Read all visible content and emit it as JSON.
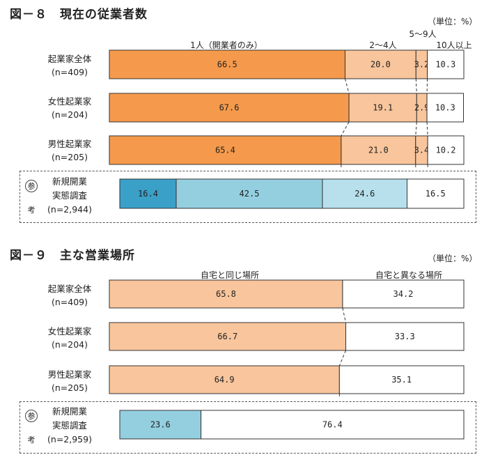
{
  "chart_data": [
    {
      "type": "bar",
      "title": "図－８　現在の従業者数",
      "unit": "（単位：%）",
      "categories": [
        "1人（開業者のみ）",
        "2～4人",
        "5～9人",
        "10人以上"
      ],
      "rows": [
        {
          "label1": "起業家全体",
          "label2": "(n=409)",
          "values": [
            66.5,
            20.0,
            3.2,
            10.3
          ]
        },
        {
          "label1": "女性起業家",
          "label2": "(n=204)",
          "values": [
            67.6,
            19.1,
            2.9,
            10.3
          ]
        },
        {
          "label1": "男性起業家",
          "label2": "(n=205)",
          "values": [
            65.4,
            21.0,
            3.4,
            10.2
          ]
        }
      ],
      "reference": {
        "label1": "新規開業",
        "label2": "実態調査",
        "label3": "(n=2,944)",
        "values": [
          16.4,
          42.5,
          24.6,
          16.5
        ]
      },
      "colors": [
        "#f59a4c",
        "#f8c59c",
        "#f8c59c",
        "#ffffff"
      ],
      "ref_colors": [
        "#3aa0c8",
        "#94cfe0",
        "#b7e0ec",
        "#ffffff"
      ]
    },
    {
      "type": "bar",
      "title": "図－９　主な営業場所",
      "unit": "（単位：%）",
      "categories": [
        "自宅と同じ場所",
        "自宅と異なる場所"
      ],
      "rows": [
        {
          "label1": "起業家全体",
          "label2": "(n=409)",
          "values": [
            65.8,
            34.2
          ]
        },
        {
          "label1": "女性起業家",
          "label2": "(n=204)",
          "values": [
            66.7,
            33.3
          ]
        },
        {
          "label1": "男性起業家",
          "label2": "(n=205)",
          "values": [
            64.9,
            35.1
          ]
        }
      ],
      "reference": {
        "label1": "新規開業",
        "label2": "実態調査",
        "label3": "(n=2,959)",
        "values": [
          23.6,
          76.4
        ]
      },
      "colors": [
        "#f8c59c",
        "#ffffff"
      ],
      "ref_colors": [
        "#94cfe0",
        "#ffffff"
      ]
    }
  ],
  "ref_tag": {
    "top": "参",
    "bottom": "考"
  },
  "value_formats": [
    [
      "66.5",
      "20.0",
      "3.2",
      "10.3"
    ]
  ]
}
